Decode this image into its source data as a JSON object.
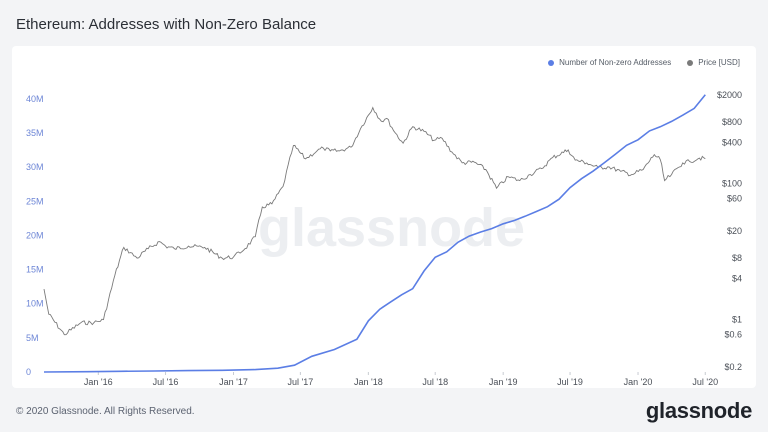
{
  "page": {
    "title": "Ethereum: Addresses with Non-Zero Balance",
    "copyright": "© 2020 Glassnode. All Rights Reserved.",
    "brand": "glassnode",
    "watermark": "glassnode"
  },
  "colors": {
    "addresses": "#5b7ee5",
    "price": "#7a7a7a"
  },
  "chart_data": {
    "type": "line",
    "title": "Ethereum: Addresses with Non-Zero Balance",
    "x_ticks": [
      "Jan '16",
      "Jul '16",
      "Jan '17",
      "Jul '17",
      "Jan '18",
      "Jul '18",
      "Jan '19",
      "Jul '19",
      "Jan '20",
      "Jul '20"
    ],
    "y_left_ticks": [
      {
        "label": "0",
        "value": 0
      },
      {
        "label": "5M",
        "value": 5000000
      },
      {
        "label": "10M",
        "value": 10000000
      },
      {
        "label": "15M",
        "value": 15000000
      },
      {
        "label": "20M",
        "value": 20000000
      },
      {
        "label": "25M",
        "value": 25000000
      },
      {
        "label": "30M",
        "value": 30000000
      },
      {
        "label": "35M",
        "value": 35000000
      },
      {
        "label": "40M",
        "value": 40000000
      }
    ],
    "y_right_ticks": [
      {
        "label": "$0.2",
        "value": 0.2
      },
      {
        "label": "$0.6",
        "value": 0.6
      },
      {
        "label": "$1",
        "value": 1
      },
      {
        "label": "$4",
        "value": 4
      },
      {
        "label": "$8",
        "value": 8
      },
      {
        "label": "$20",
        "value": 20
      },
      {
        "label": "$60",
        "value": 60
      },
      {
        "label": "$100",
        "value": 100
      },
      {
        "label": "$400",
        "value": 400
      },
      {
        "label": "$800",
        "value": 800
      },
      {
        "label": "$2000",
        "value": 2000
      }
    ],
    "ylim_left": [
      0,
      41000000
    ],
    "ylim_right_log": [
      0.17,
      2200
    ],
    "legend": "top-right",
    "series": [
      {
        "name": "Number of Non-zero Addresses",
        "axis": "left",
        "x": [
          "2015-08-07",
          "2015-12-01",
          "2016-03-01",
          "2016-06-01",
          "2016-09-01",
          "2016-12-01",
          "2017-03-01",
          "2017-05-01",
          "2017-06-15",
          "2017-08-01",
          "2017-10-01",
          "2017-12-01",
          "2018-01-01",
          "2018-02-01",
          "2018-03-01",
          "2018-04-01",
          "2018-05-01",
          "2018-06-01",
          "2018-07-01",
          "2018-08-01",
          "2018-09-01",
          "2018-10-01",
          "2018-11-01",
          "2018-12-01",
          "2019-01-01",
          "2019-02-01",
          "2019-03-01",
          "2019-04-01",
          "2019-05-01",
          "2019-06-01",
          "2019-07-01",
          "2019-08-01",
          "2019-09-01",
          "2019-10-01",
          "2019-11-01",
          "2019-12-01",
          "2020-01-01",
          "2020-02-01",
          "2020-03-01",
          "2020-04-01",
          "2020-05-01",
          "2020-06-01",
          "2020-07-01"
        ],
        "values": [
          0,
          50000,
          100000,
          150000,
          200000,
          250000,
          350000,
          550000,
          1000000,
          2300000,
          3300000,
          4800000,
          7500000,
          9200000,
          10200000,
          11300000,
          12200000,
          14800000,
          16800000,
          17600000,
          19000000,
          19900000,
          20500000,
          21000000,
          21700000,
          22200000,
          22800000,
          23500000,
          24200000,
          25300000,
          27000000,
          28300000,
          29400000,
          30600000,
          31900000,
          33200000,
          34000000,
          35300000,
          35900000,
          36700000,
          37600000,
          38600000,
          40600000
        ]
      },
      {
        "name": "Price [USD]",
        "axis": "right",
        "x": [
          "2015-08-07",
          "2015-08-20",
          "2015-10-01",
          "2015-11-15",
          "2015-12-20",
          "2016-01-15",
          "2016-02-15",
          "2016-03-10",
          "2016-04-15",
          "2016-05-15",
          "2016-06-15",
          "2016-07-01",
          "2016-07-25",
          "2016-09-01",
          "2016-10-15",
          "2016-12-01",
          "2017-01-01",
          "2017-02-01",
          "2017-03-01",
          "2017-03-20",
          "2017-04-15",
          "2017-05-15",
          "2017-06-12",
          "2017-07-15",
          "2017-08-15",
          "2017-09-01",
          "2017-09-20",
          "2017-10-15",
          "2017-11-15",
          "2017-12-15",
          "2018-01-13",
          "2018-02-05",
          "2018-02-20",
          "2018-03-15",
          "2018-04-05",
          "2018-05-01",
          "2018-06-01",
          "2018-06-28",
          "2018-07-20",
          "2018-08-15",
          "2018-09-12",
          "2018-10-15",
          "2018-11-15",
          "2018-12-14",
          "2019-01-15",
          "2019-02-15",
          "2019-03-15",
          "2019-04-15",
          "2019-05-15",
          "2019-06-26",
          "2019-07-15",
          "2019-08-15",
          "2019-09-15",
          "2019-10-15",
          "2019-11-15",
          "2019-12-15",
          "2020-01-15",
          "2020-02-14",
          "2020-03-01",
          "2020-03-13",
          "2020-04-01",
          "2020-05-01",
          "2020-05-20",
          "2020-06-15",
          "2020-07-01"
        ],
        "values": [
          2.8,
          1.2,
          0.6,
          0.9,
          0.9,
          1.0,
          4.5,
          11.5,
          8.0,
          11.0,
          14.0,
          12.0,
          11.0,
          12.0,
          11.5,
          8.0,
          8.3,
          11.0,
          16.5,
          45,
          50,
          90,
          360,
          230,
          300,
          330,
          300,
          300,
          340,
          700,
          1300,
          820,
          900,
          550,
          390,
          680,
          580,
          430,
          460,
          290,
          200,
          205,
          160,
          85,
          125,
          110,
          135,
          165,
          240,
          310,
          220,
          200,
          170,
          175,
          150,
          135,
          160,
          265,
          225,
          110,
          135,
          200,
          210,
          235,
          230
        ]
      }
    ]
  }
}
